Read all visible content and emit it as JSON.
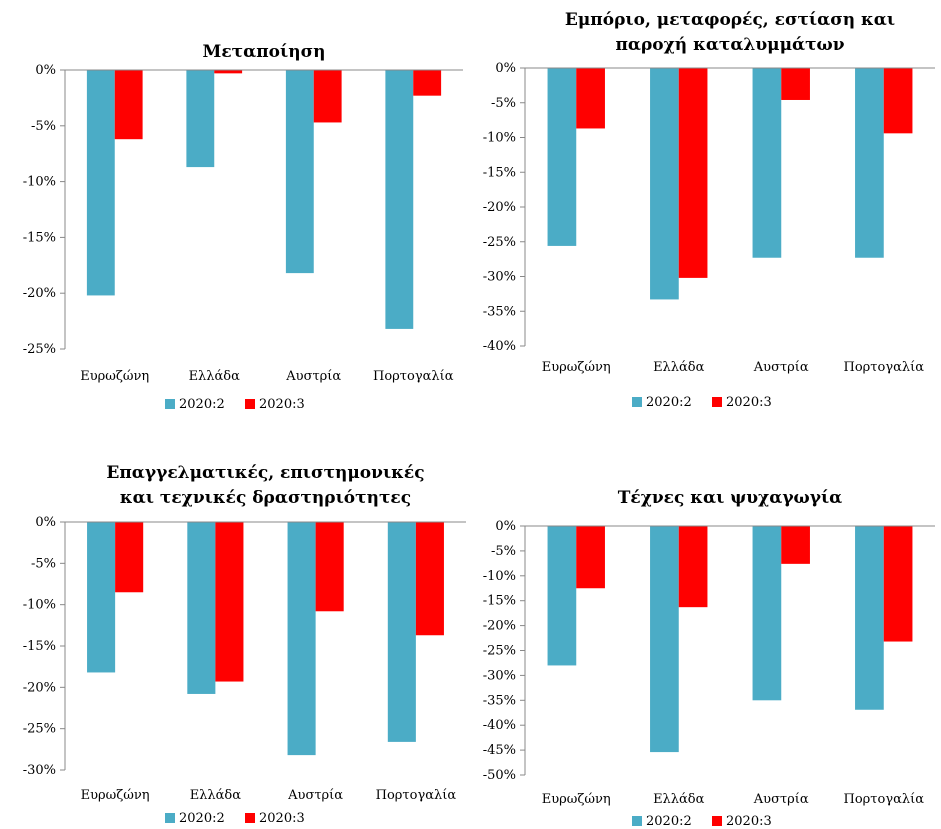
{
  "colors": {
    "s1": "#4BACC6",
    "s2": "#FF0000"
  },
  "chart_data": [
    {
      "type": "bar",
      "title_lines": [
        "Μεταποίηση"
      ],
      "categories": [
        "Ευρωζώνη",
        "Ελλάδα",
        "Αυστρία",
        "Πορτογαλία"
      ],
      "series": [
        {
          "name": "2020:2",
          "values": [
            -20.2,
            -8.7,
            -18.2,
            -23.2
          ]
        },
        {
          "name": "2020:3",
          "values": [
            -6.2,
            -0.3,
            -4.7,
            -2.3
          ]
        }
      ],
      "ylim": [
        -25,
        0
      ],
      "yticks": [
        0,
        -5,
        -10,
        -15,
        -20,
        -25
      ],
      "ytick_labels": [
        "0%",
        "-5%",
        "-10%",
        "-15%",
        "-20%",
        "-25%"
      ],
      "grid": false,
      "legend": "bottom"
    },
    {
      "type": "bar",
      "title_lines": [
        "Εμπόριο, μεταφορές, εστίαση και",
        "παροχή καταλυμμάτων"
      ],
      "categories": [
        "Ευρωζώνη",
        "Ελλάδα",
        "Αυστρία",
        "Πορτογαλία"
      ],
      "series": [
        {
          "name": "2020:2",
          "values": [
            -25.6,
            -33.3,
            -27.3,
            -27.3
          ]
        },
        {
          "name": "2020:3",
          "values": [
            -8.7,
            -30.2,
            -4.6,
            -9.4
          ]
        }
      ],
      "ylim": [
        -40,
        0
      ],
      "yticks": [
        0,
        -5,
        -10,
        -15,
        -20,
        -25,
        -30,
        -35,
        -40
      ],
      "ytick_labels": [
        "0%",
        "-5%",
        "-10%",
        "-15%",
        "-20%",
        "-25%",
        "-30%",
        "-35%",
        "-40%"
      ],
      "grid": false,
      "legend": "bottom"
    },
    {
      "type": "bar",
      "title_lines": [
        "Επαγγελματικές, επιστημονικές",
        "και τεχνικές δραστηριότητες"
      ],
      "categories": [
        "Ευρωζώνη",
        "Ελλάδα",
        "Αυστρία",
        "Πορτογαλία"
      ],
      "series": [
        {
          "name": "2020:2",
          "values": [
            -18.2,
            -20.8,
            -28.2,
            -26.6
          ]
        },
        {
          "name": "2020:3",
          "values": [
            -8.5,
            -19.3,
            -10.8,
            -13.7
          ]
        }
      ],
      "ylim": [
        -30,
        0
      ],
      "yticks": [
        0,
        -5,
        -10,
        -15,
        -20,
        -25,
        -30
      ],
      "ytick_labels": [
        "0%",
        "-5%",
        "-10%",
        "-15%",
        "-20%",
        "-25%",
        "-30%"
      ],
      "grid": false,
      "legend": "bottom"
    },
    {
      "type": "bar",
      "title_lines": [
        "Τέχνες και ψυχαγωγία"
      ],
      "categories": [
        "Ευρωζώνη",
        "Ελλάδα",
        "Αυστρία",
        "Πορτογαλία"
      ],
      "series": [
        {
          "name": "2020:2",
          "values": [
            -28.0,
            -45.4,
            -35.0,
            -36.9
          ]
        },
        {
          "name": "2020:3",
          "values": [
            -12.5,
            -16.3,
            -7.6,
            -23.2
          ]
        }
      ],
      "ylim": [
        -50,
        0
      ],
      "yticks": [
        0,
        -5,
        -10,
        -15,
        -20,
        -25,
        -30,
        -35,
        -40,
        -45,
        -50
      ],
      "ytick_labels": [
        "0%",
        "-5%",
        "-10%",
        "-15%",
        "-20%",
        "-25%",
        "-30%",
        "-35%",
        "-40%",
        "-45%",
        "-50%"
      ],
      "grid": false,
      "legend": "bottom"
    }
  ]
}
